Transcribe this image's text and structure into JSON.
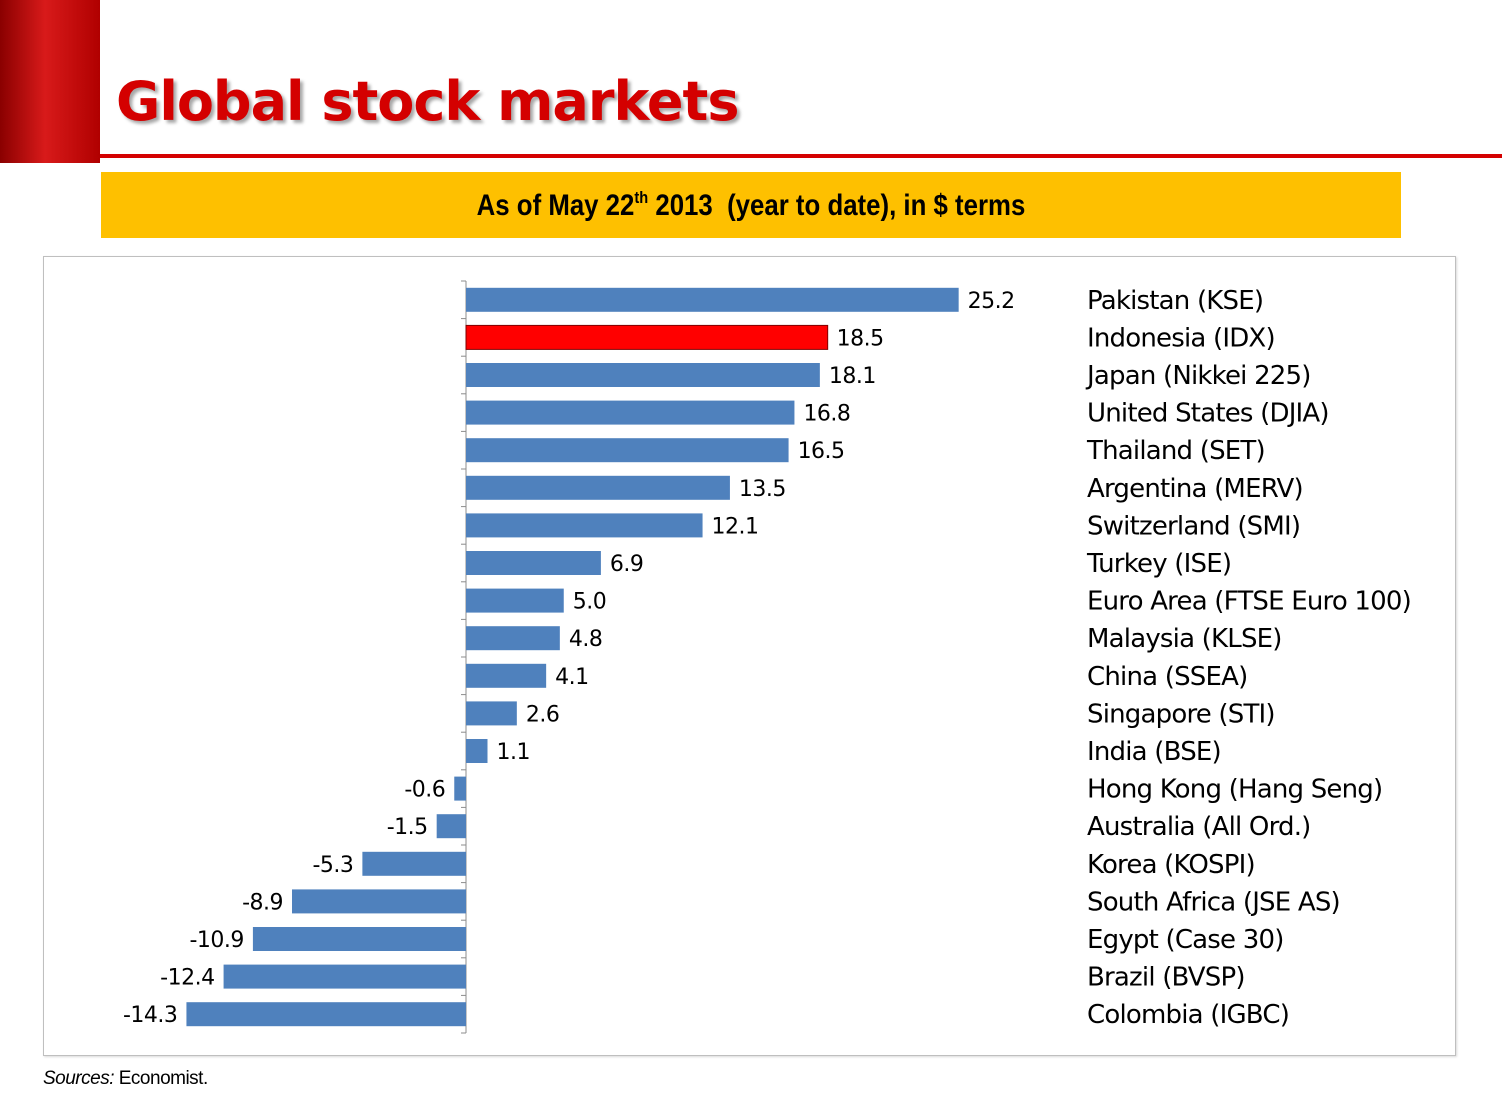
{
  "slide": {
    "title": "Global stock markets",
    "subtitle_pre": "As of May 22",
    "subtitle_sup": "th",
    "subtitle_post": " 2013  (year to date), in $ terms",
    "source_label": "Sources:",
    "source_text": " Economist."
  },
  "colors": {
    "accent": "#d40000",
    "banner": "#fec000",
    "bar": "#4f81bd",
    "highlight": "#ff0000"
  },
  "chart_data": {
    "type": "bar",
    "orientation": "horizontal",
    "title": "",
    "xlabel": "",
    "ylabel": "",
    "xlim": [
      -15,
      26
    ],
    "highlight_category": "Indonesia (IDX)",
    "categories": [
      "Pakistan (KSE)",
      "Indonesia (IDX)",
      "Japan (Nikkei 225)",
      "United States (DJIA)",
      "Thailand (SET)",
      "Argentina (MERV)",
      "Switzerland (SMI)",
      "Turkey (ISE)",
      "Euro Area (FTSE Euro 100)",
      "Malaysia (KLSE)",
      "China (SSEA)",
      "Singapore (STI)",
      "India (BSE)",
      "Hong Kong (Hang Seng)",
      "Australia (All Ord.)",
      "Korea (KOSPI)",
      "South Africa (JSE AS)",
      "Egypt (Case 30)",
      "Brazil (BVSP)",
      "Colombia (IGBC)"
    ],
    "values": [
      25.2,
      18.5,
      18.1,
      16.8,
      16.5,
      13.5,
      12.1,
      6.9,
      5.0,
      4.8,
      4.1,
      2.6,
      1.1,
      -0.6,
      -1.5,
      -5.3,
      -8.9,
      -10.9,
      -12.4,
      -14.3
    ],
    "value_labels": [
      "25.2",
      "18.5",
      "18.1",
      "16.8",
      "16.5",
      "13.5",
      "12.1",
      "6.9",
      "5.0",
      "4.8",
      "4.1",
      "2.6",
      "1.1",
      "-0.6",
      "-1.5",
      "-5.3",
      "-8.9",
      "-10.9",
      "-12.4",
      "-14.3"
    ]
  }
}
